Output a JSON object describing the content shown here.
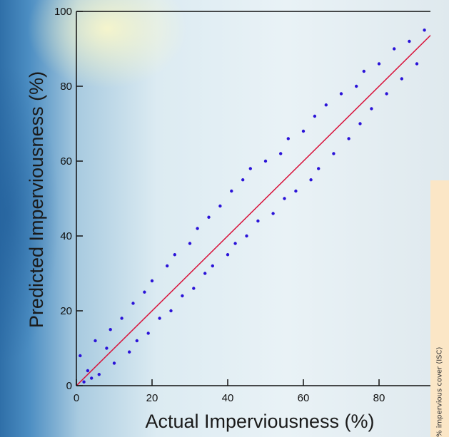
{
  "chart_data": {
    "type": "scatter",
    "title": "",
    "xlabel": "Actual Imperviousness (%)",
    "ylabel": "Predicted Imperviousness (%)",
    "xlim": [
      0,
      96
    ],
    "ylim": [
      0,
      100
    ],
    "xticks": [
      "0",
      "20",
      "40",
      "60",
      "80"
    ],
    "yticks": [
      "0",
      "20",
      "40",
      "60",
      "80",
      "100"
    ],
    "reference_line": "y = x",
    "grid": false,
    "series": [
      {
        "color": "#2a12d8",
        "points": [
          [
            2,
            1
          ],
          [
            3,
            4
          ],
          [
            1,
            8
          ],
          [
            4,
            2
          ],
          [
            5,
            12
          ],
          [
            6,
            3
          ],
          [
            8,
            10
          ],
          [
            9,
            15
          ],
          [
            10,
            6
          ],
          [
            12,
            18
          ],
          [
            14,
            9
          ],
          [
            15,
            22
          ],
          [
            16,
            12
          ],
          [
            18,
            25
          ],
          [
            19,
            14
          ],
          [
            20,
            28
          ],
          [
            22,
            18
          ],
          [
            24,
            32
          ],
          [
            25,
            20
          ],
          [
            26,
            35
          ],
          [
            28,
            24
          ],
          [
            30,
            38
          ],
          [
            31,
            26
          ],
          [
            32,
            42
          ],
          [
            34,
            30
          ],
          [
            35,
            45
          ],
          [
            36,
            32
          ],
          [
            38,
            48
          ],
          [
            40,
            35
          ],
          [
            41,
            52
          ],
          [
            42,
            38
          ],
          [
            44,
            55
          ],
          [
            45,
            40
          ],
          [
            46,
            58
          ],
          [
            48,
            44
          ],
          [
            50,
            60
          ],
          [
            52,
            46
          ],
          [
            54,
            62
          ],
          [
            55,
            50
          ],
          [
            56,
            66
          ],
          [
            58,
            52
          ],
          [
            60,
            68
          ],
          [
            62,
            55
          ],
          [
            63,
            72
          ],
          [
            64,
            58
          ],
          [
            66,
            75
          ],
          [
            68,
            62
          ],
          [
            70,
            78
          ],
          [
            72,
            66
          ],
          [
            74,
            80
          ],
          [
            75,
            70
          ],
          [
            76,
            84
          ],
          [
            78,
            74
          ],
          [
            80,
            86
          ],
          [
            82,
            78
          ],
          [
            84,
            90
          ],
          [
            86,
            82
          ],
          [
            88,
            92
          ],
          [
            90,
            86
          ],
          [
            92,
            95
          ]
        ]
      }
    ],
    "side_panel_label": "% impervious cover (ISC)"
  }
}
